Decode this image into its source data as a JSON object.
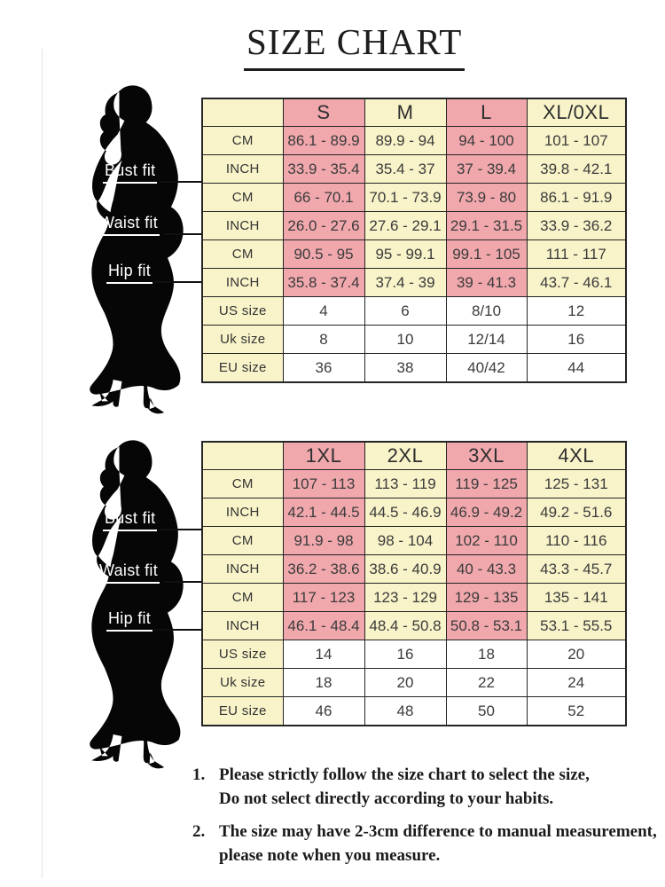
{
  "title": "SIZE CHART",
  "fit_labels": [
    "Bust fit",
    "Waist fit",
    "Hip fit"
  ],
  "colors": {
    "pink": "#f0a8ad",
    "cream": "#f8f3c9",
    "white": "#ffffff",
    "border": "#242424",
    "silhouette": "#060606"
  },
  "chart_data": [
    {
      "type": "table",
      "sizes": [
        "S",
        "M",
        "L",
        "XL/0XL"
      ],
      "rows": [
        {
          "group": "Bust fit",
          "label": "CM",
          "values": [
            "86.1 - 89.9",
            "89.9 - 94",
            "94 - 100",
            "101 - 107"
          ]
        },
        {
          "group": "Bust fit",
          "label": "INCH",
          "values": [
            "33.9 - 35.4",
            "35.4 - 37",
            "37 - 39.4",
            "39.8 - 42.1"
          ]
        },
        {
          "group": "Waist fit",
          "label": "CM",
          "values": [
            "66 - 70.1",
            "70.1 - 73.9",
            "73.9 - 80",
            "86.1 - 91.9"
          ]
        },
        {
          "group": "Waist fit",
          "label": "INCH",
          "values": [
            "26.0 - 27.6",
            "27.6 - 29.1",
            "29.1 - 31.5",
            "33.9 - 36.2"
          ]
        },
        {
          "group": "Hip fit",
          "label": "CM",
          "values": [
            "90.5 - 95",
            "95 - 99.1",
            "99.1 - 105",
            "111 - 117"
          ]
        },
        {
          "group": "Hip fit",
          "label": "INCH",
          "values": [
            "35.8 - 37.4",
            "37.4 - 39",
            "39 - 41.3",
            "43.7 - 46.1"
          ]
        },
        {
          "group": "",
          "label": "US size",
          "values": [
            "4",
            "6",
            "8/10",
            "12"
          ]
        },
        {
          "group": "",
          "label": "Uk size",
          "values": [
            "8",
            "10",
            "12/14",
            "16"
          ]
        },
        {
          "group": "",
          "label": "EU size",
          "values": [
            "36",
            "38",
            "40/42",
            "44"
          ]
        }
      ]
    },
    {
      "type": "table",
      "sizes": [
        "1XL",
        "2XL",
        "3XL",
        "4XL"
      ],
      "rows": [
        {
          "group": "Bust fit",
          "label": "CM",
          "values": [
            "107 - 113",
            "113 - 119",
            "119 - 125",
            "125 - 131"
          ]
        },
        {
          "group": "Bust fit",
          "label": "INCH",
          "values": [
            "42.1 - 44.5",
            "44.5 - 46.9",
            "46.9 - 49.2",
            "49.2 - 51.6"
          ]
        },
        {
          "group": "Waist fit",
          "label": "CM",
          "values": [
            "91.9 - 98",
            "98 - 104",
            "102 - 110",
            "110 - 116"
          ]
        },
        {
          "group": "Waist fit",
          "label": "INCH",
          "values": [
            "36.2 - 38.6",
            "38.6 - 40.9",
            "40 - 43.3",
            "43.3 - 45.7"
          ]
        },
        {
          "group": "Hip fit",
          "label": "CM",
          "values": [
            "117 - 123",
            "123 - 129",
            "129 - 135",
            "135 - 141"
          ]
        },
        {
          "group": "Hip fit",
          "label": "INCH",
          "values": [
            "46.1 - 48.4",
            "48.4 - 50.8",
            "50.8 - 53.1",
            "53.1 - 55.5"
          ]
        },
        {
          "group": "",
          "label": "US size",
          "values": [
            "14",
            "16",
            "18",
            "20"
          ]
        },
        {
          "group": "",
          "label": "Uk size",
          "values": [
            "18",
            "20",
            "22",
            "24"
          ]
        },
        {
          "group": "",
          "label": "EU size",
          "values": [
            "46",
            "48",
            "50",
            "52"
          ]
        }
      ]
    }
  ],
  "notes": [
    {
      "num": "1.",
      "line1": "Please strictly follow the size chart to select the size,",
      "line2": "Do not select directly according to your habits."
    },
    {
      "num": "2.",
      "line1": "The size may have 2-3cm difference  to manual measurement,",
      "line2": "please note when you measure."
    }
  ]
}
